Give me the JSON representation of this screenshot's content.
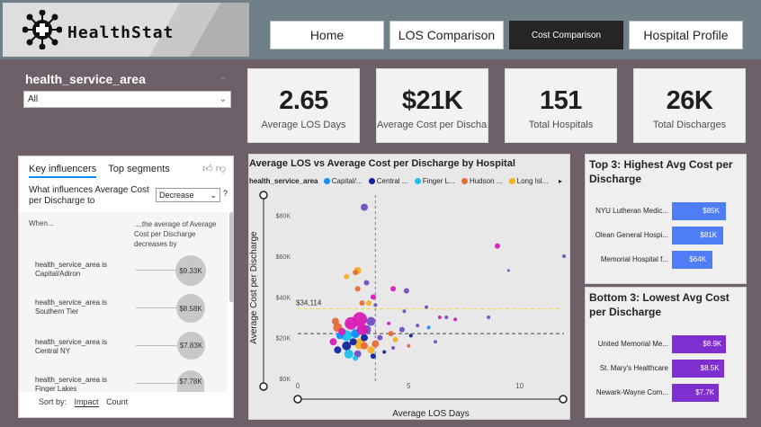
{
  "app": {
    "name": "HealthStat"
  },
  "nav": {
    "home": "Home",
    "los": "LOS Comparison",
    "cost": "Cost Comparison",
    "profile": "Hospital Profile"
  },
  "filter": {
    "title": "health_service_area",
    "value": "All"
  },
  "kpis": [
    {
      "value": "2.65",
      "label": "Average LOS Days"
    },
    {
      "value": "$21K",
      "label": "Average Cost per Discharge"
    },
    {
      "value": "151",
      "label": "Total Hospitals"
    },
    {
      "value": "26K",
      "label": "Total Discharges"
    }
  ],
  "influencers": {
    "tab_key": "Key influencers",
    "tab_top": "Top segments",
    "question": "What influences Average Cost per Discharge to",
    "direction": "Decrease",
    "help": "?",
    "when": "When...",
    "then": "....the average of Average Cost per Discharge decreases by",
    "rows": [
      {
        "label": "health_service_area is Capital/Adiron",
        "value": "$9.33K"
      },
      {
        "label": "health_service_area is Southern Tier",
        "value": "$8.58K"
      },
      {
        "label": "health_service_area is Central NY",
        "value": "$7.83K"
      },
      {
        "label": "health_service_area is Finger Lakes",
        "value": "$7.78K"
      }
    ],
    "sort_by": "Sort by:",
    "sort_impact": "Impact",
    "sort_count": "Count"
  },
  "scatter": {
    "title": "Average LOS vs Average Cost per Discharge by Hospital",
    "legend_title": "health_service_area",
    "legend_items": [
      {
        "name": "Capital/...",
        "color": "#118dff"
      },
      {
        "name": "Central ...",
        "color": "#12239e"
      },
      {
        "name": "Finger L...",
        "color": "#1ac1f2"
      },
      {
        "name": "Hudson ...",
        "color": "#e66c37"
      },
      {
        "name": "Long Isl...",
        "color": "#f5b025"
      }
    ],
    "ref_label": "$34,114"
  },
  "chart_data": [
    {
      "type": "scatter",
      "title": "Average LOS vs Average Cost per Discharge by Hospital",
      "xlabel": "Average LOS Days",
      "ylabel": "Average Cost per Discharge",
      "xlim": [
        0,
        12
      ],
      "ylim": [
        0,
        90000
      ],
      "x_ticks": [
        "0",
        "5",
        "10"
      ],
      "y_ticks": [
        "$0K",
        "$20K",
        "$40K",
        "$60K",
        "$80K"
      ],
      "average_x": 3.5,
      "average_y": 22000,
      "reference_y": 34114,
      "points": [
        {
          "x": 3.0,
          "y": 84000,
          "r": 4,
          "c": "#744ec2"
        },
        {
          "x": 9.0,
          "y": 65000,
          "r": 3,
          "c": "#d91cb6"
        },
        {
          "x": 12.0,
          "y": 60000,
          "r": 2,
          "c": "#744ec2"
        },
        {
          "x": 9.5,
          "y": 53000,
          "r": 1.5,
          "c": "#744ec2"
        },
        {
          "x": 2.7,
          "y": 53000,
          "r": 4,
          "c": "#f5b025"
        },
        {
          "x": 2.2,
          "y": 50000,
          "r": 3,
          "c": "#f5b025"
        },
        {
          "x": 2.6,
          "y": 52000,
          "r": 3,
          "c": "#e66c37"
        },
        {
          "x": 3.1,
          "y": 47000,
          "r": 3,
          "c": "#744ec2"
        },
        {
          "x": 2.7,
          "y": 44000,
          "r": 3,
          "c": "#e66c37"
        },
        {
          "x": 4.3,
          "y": 44000,
          "r": 3,
          "c": "#d91cb6"
        },
        {
          "x": 4.9,
          "y": 43000,
          "r": 3,
          "c": "#744ec2"
        },
        {
          "x": 3.4,
          "y": 40000,
          "r": 3,
          "c": "#d91cb6"
        },
        {
          "x": 2.9,
          "y": 37000,
          "r": 3,
          "c": "#e66c37"
        },
        {
          "x": 3.2,
          "y": 37000,
          "r": 3,
          "c": "#f5b025"
        },
        {
          "x": 3.5,
          "y": 36000,
          "r": 2,
          "c": "#744ec2"
        },
        {
          "x": 4.8,
          "y": 33000,
          "r": 2,
          "c": "#744ec2"
        },
        {
          "x": 5.8,
          "y": 35000,
          "r": 2,
          "c": "#744ec2"
        },
        {
          "x": 6.4,
          "y": 30000,
          "r": 2,
          "c": "#d91cb6"
        },
        {
          "x": 7.1,
          "y": 29000,
          "r": 2,
          "c": "#d91cb6"
        },
        {
          "x": 8.6,
          "y": 30000,
          "r": 2,
          "c": "#744ec2"
        },
        {
          "x": 6.7,
          "y": 30000,
          "r": 2,
          "c": "#744ec2"
        },
        {
          "x": 1.8,
          "y": 25000,
          "r": 5,
          "c": "#e66c37"
        },
        {
          "x": 2.4,
          "y": 27000,
          "r": 7,
          "c": "#d91cb6"
        },
        {
          "x": 2.8,
          "y": 29000,
          "r": 8,
          "c": "#d91cb6"
        },
        {
          "x": 3.3,
          "y": 28000,
          "r": 5,
          "c": "#744ec2"
        },
        {
          "x": 1.7,
          "y": 28000,
          "r": 4,
          "c": "#e66c37"
        },
        {
          "x": 2.2,
          "y": 21000,
          "r": 6,
          "c": "#1ac1f2"
        },
        {
          "x": 2.6,
          "y": 22000,
          "r": 5,
          "c": "#118dff"
        },
        {
          "x": 2.8,
          "y": 17000,
          "r": 6,
          "c": "#f5b025"
        },
        {
          "x": 2.2,
          "y": 16000,
          "r": 5,
          "c": "#12239e"
        },
        {
          "x": 3.0,
          "y": 16000,
          "r": 4,
          "c": "#e66c37"
        },
        {
          "x": 3.3,
          "y": 14000,
          "r": 4,
          "c": "#f5b025"
        },
        {
          "x": 1.8,
          "y": 14000,
          "r": 4,
          "c": "#12239e"
        },
        {
          "x": 2.3,
          "y": 12000,
          "r": 5,
          "c": "#1ac1f2"
        },
        {
          "x": 2.7,
          "y": 12000,
          "r": 4,
          "c": "#744ec2"
        },
        {
          "x": 2.6,
          "y": 10000,
          "r": 3,
          "c": "#1ac1f2"
        },
        {
          "x": 3.4,
          "y": 11000,
          "r": 3,
          "c": "#12239e"
        },
        {
          "x": 1.6,
          "y": 18000,
          "r": 4,
          "c": "#d91cb6"
        },
        {
          "x": 1.9,
          "y": 21000,
          "r": 4,
          "c": "#118dff"
        },
        {
          "x": 3.0,
          "y": 20000,
          "r": 4,
          "c": "#12239e"
        },
        {
          "x": 3.5,
          "y": 17000,
          "r": 4,
          "c": "#e66c37"
        },
        {
          "x": 3.7,
          "y": 20000,
          "r": 3,
          "c": "#744ec2"
        },
        {
          "x": 4.2,
          "y": 22000,
          "r": 3,
          "c": "#e66c37"
        },
        {
          "x": 4.4,
          "y": 19000,
          "r": 3,
          "c": "#f5b025"
        },
        {
          "x": 4.7,
          "y": 24000,
          "r": 3,
          "c": "#744ec2"
        },
        {
          "x": 4.1,
          "y": 27000,
          "r": 2,
          "c": "#d91cb6"
        },
        {
          "x": 5.1,
          "y": 21000,
          "r": 2,
          "c": "#12239e"
        },
        {
          "x": 5.4,
          "y": 26000,
          "r": 2,
          "c": "#744ec2"
        },
        {
          "x": 5.9,
          "y": 25000,
          "r": 2,
          "c": "#118dff"
        },
        {
          "x": 6.2,
          "y": 18000,
          "r": 2,
          "c": "#744ec2"
        },
        {
          "x": 5.0,
          "y": 16000,
          "r": 2,
          "c": "#e66c37"
        },
        {
          "x": 3.9,
          "y": 13000,
          "r": 2,
          "c": "#12239e"
        },
        {
          "x": 4.3,
          "y": 15000,
          "r": 2,
          "c": "#744ec2"
        },
        {
          "x": 3.1,
          "y": 24000,
          "r": 5,
          "c": "#744ec2"
        },
        {
          "x": 2.0,
          "y": 23000,
          "r": 4,
          "c": "#d91cb6"
        },
        {
          "x": 2.5,
          "y": 18000,
          "r": 4,
          "c": "#12239e"
        },
        {
          "x": 2.9,
          "y": 24000,
          "r": 6,
          "c": "#d91cb6"
        }
      ]
    },
    {
      "type": "bar",
      "title": "Top 3: Highest Avg Cost per Discharge",
      "categories": [
        "NYU Lutheran Medic...",
        "Olean General Hospi...",
        "Memorial Hospital f..."
      ],
      "values": [
        85,
        81,
        64
      ],
      "labels": [
        "$85K",
        "$81K",
        "$64K"
      ],
      "xlim": [
        0,
        110
      ],
      "color": "#4f7df5"
    },
    {
      "type": "bar",
      "title": "Bottom 3: Lowest Avg Cost per Discharge",
      "categories": [
        "United Memorial Me...",
        "St. Mary's Healthcare",
        "Newark-Wayne Com..."
      ],
      "values": [
        8.9,
        8.5,
        7.7
      ],
      "labels": [
        "$8.9K",
        "$8.5K",
        "$7.7K"
      ],
      "xlim": [
        0,
        11.5
      ],
      "color": "#7f2fd0"
    }
  ]
}
